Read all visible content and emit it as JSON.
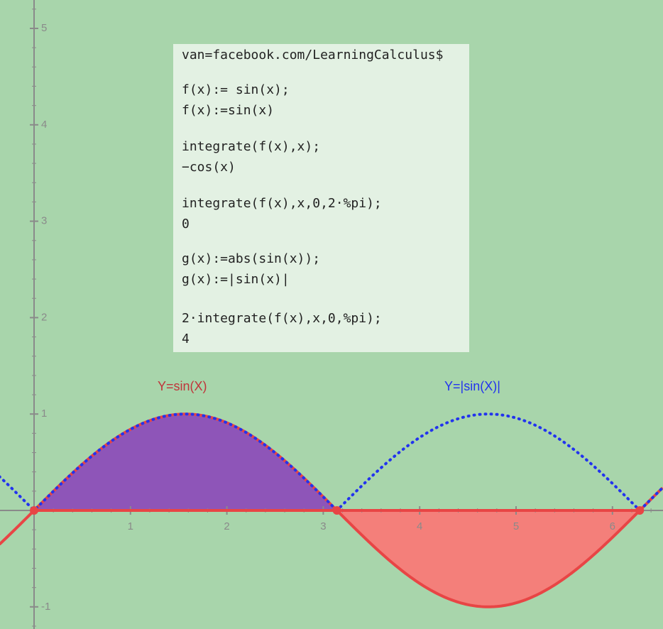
{
  "graph": {
    "xticks": [
      1,
      2,
      3,
      4,
      5,
      6
    ],
    "yticks": [
      -1,
      1,
      2,
      3,
      4,
      5
    ],
    "labels": [
      "Y=sin(X)",
      "Y=|sin(X)|"
    ]
  },
  "panel": {
    "cells": [
      {
        "input": "van=facebook.com/LearningCalculus$"
      },
      {
        "input": "f(x):= sin(x);",
        "output": "f(x):=sin(x)"
      },
      {
        "input": "integrate(f(x),x);",
        "output": "−cos(x)"
      },
      {
        "input": "integrate(f(x),x,0,2·%pi);",
        "output": "0"
      },
      {
        "input": "g(x):=abs(sin(x));",
        "output": "g(x):=|sin(x)|"
      },
      {
        "input": "2·integrate(f(x),x,0,%pi);",
        "output": "4"
      }
    ]
  }
}
